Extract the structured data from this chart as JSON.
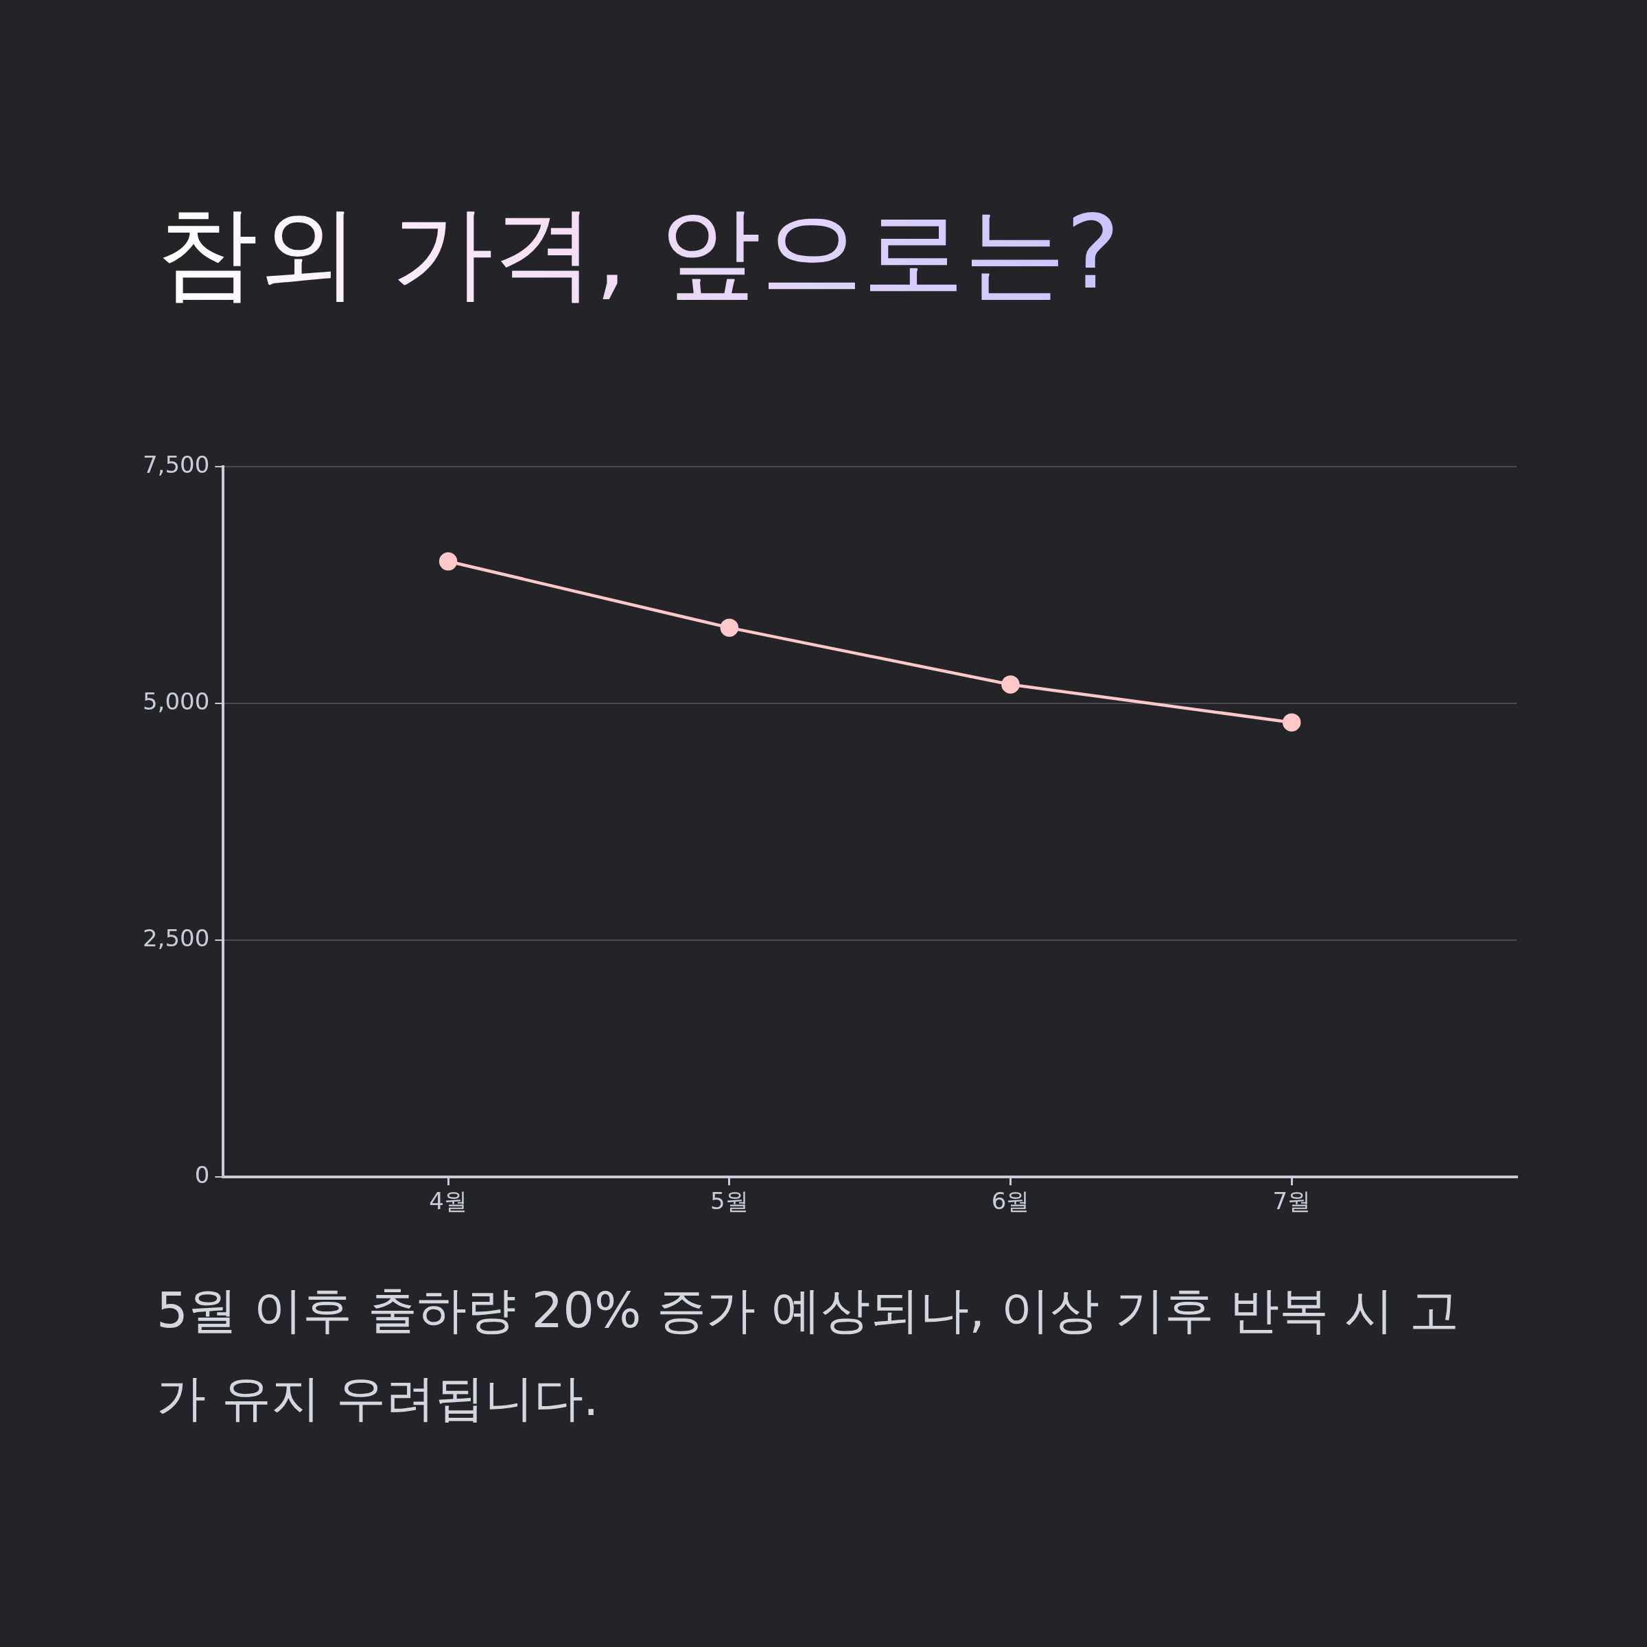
{
  "chart_data": {
    "type": "line",
    "title": "참외 가격, 앞으로는?",
    "categories": [
      "4월",
      "5월",
      "6월",
      "7월"
    ],
    "series": [
      {
        "color": "#ffc9c9",
        "values": [
          6500,
          5800,
          5200,
          4800
        ]
      }
    ],
    "ylim": [
      0,
      7500
    ],
    "yticks": [
      0,
      {
        "value": 2500,
        "label": "2,500"
      },
      {
        "value": 5000,
        "label": "5,000"
      },
      {
        "value": 7500,
        "label": "7,500"
      }
    ],
    "grid": "y",
    "marker": "circle",
    "line_style": "solid",
    "legend": false,
    "annotations": [
      "5월 이후 출하량 20% 증가 예상되나, 이상 기후 반복 시 고가 유지 우려됩니다."
    ]
  }
}
